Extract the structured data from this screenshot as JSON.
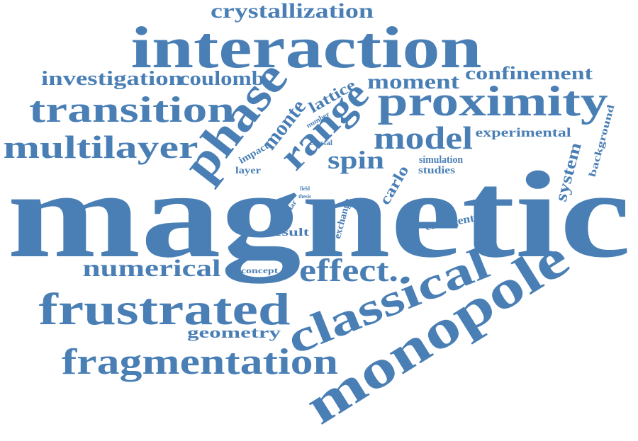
{
  "style": {
    "word_color": "#4a7fb5",
    "background": "#ffffff"
  },
  "words": [
    {
      "id": "magnetic",
      "text": "magnetic"
    },
    {
      "id": "interaction",
      "text": "interaction"
    },
    {
      "id": "monopole",
      "text": "monopole"
    },
    {
      "id": "classical",
      "text": "classical"
    },
    {
      "id": "proximity",
      "text": "proximity"
    },
    {
      "id": "frustrated",
      "text": "frustrated"
    },
    {
      "id": "fragmentation",
      "text": "fragmentation"
    },
    {
      "id": "transition",
      "text": "transition"
    },
    {
      "id": "multilayer",
      "text": "multilayer"
    },
    {
      "id": "phase",
      "text": "phase"
    },
    {
      "id": "range",
      "text": "range"
    },
    {
      "id": "effect",
      "text": "effect."
    },
    {
      "id": "model",
      "text": "model"
    },
    {
      "id": "numerical",
      "text": "numerical"
    },
    {
      "id": "crystallization",
      "text": "crystallization"
    },
    {
      "id": "investigation",
      "text": "investigation"
    },
    {
      "id": "coulomb",
      "text": "coulomb"
    },
    {
      "id": "moment",
      "text": "moment"
    },
    {
      "id": "confinement",
      "text": "confinement"
    },
    {
      "id": "monte",
      "text": "monte"
    },
    {
      "id": "lattice",
      "text": "lattice"
    },
    {
      "id": "spin",
      "text": "spin"
    },
    {
      "id": "experimental",
      "text": "experimental"
    },
    {
      "id": "background",
      "text": "background"
    },
    {
      "id": "system",
      "text": "system"
    },
    {
      "id": "carlo",
      "text": "carlo"
    },
    {
      "id": "simulation",
      "text": "simulation"
    },
    {
      "id": "studies",
      "text": "studies"
    },
    {
      "id": "number",
      "text": "number"
    },
    {
      "id": "crystal",
      "text": "crystal"
    },
    {
      "id": "impact",
      "text": "impact"
    },
    {
      "id": "layer",
      "text": "layer"
    },
    {
      "id": "field",
      "text": "field"
    },
    {
      "id": "thesis",
      "text": "thesis"
    },
    {
      "id": "dipolar",
      "text": "dipolar"
    },
    {
      "id": "exchange",
      "text": "exchange"
    },
    {
      "id": "result",
      "text": "result"
    },
    {
      "id": "emergent",
      "text": "emergent"
    },
    {
      "id": "concept",
      "text": "concept"
    },
    {
      "id": "geometry",
      "text": "geometry"
    }
  ]
}
